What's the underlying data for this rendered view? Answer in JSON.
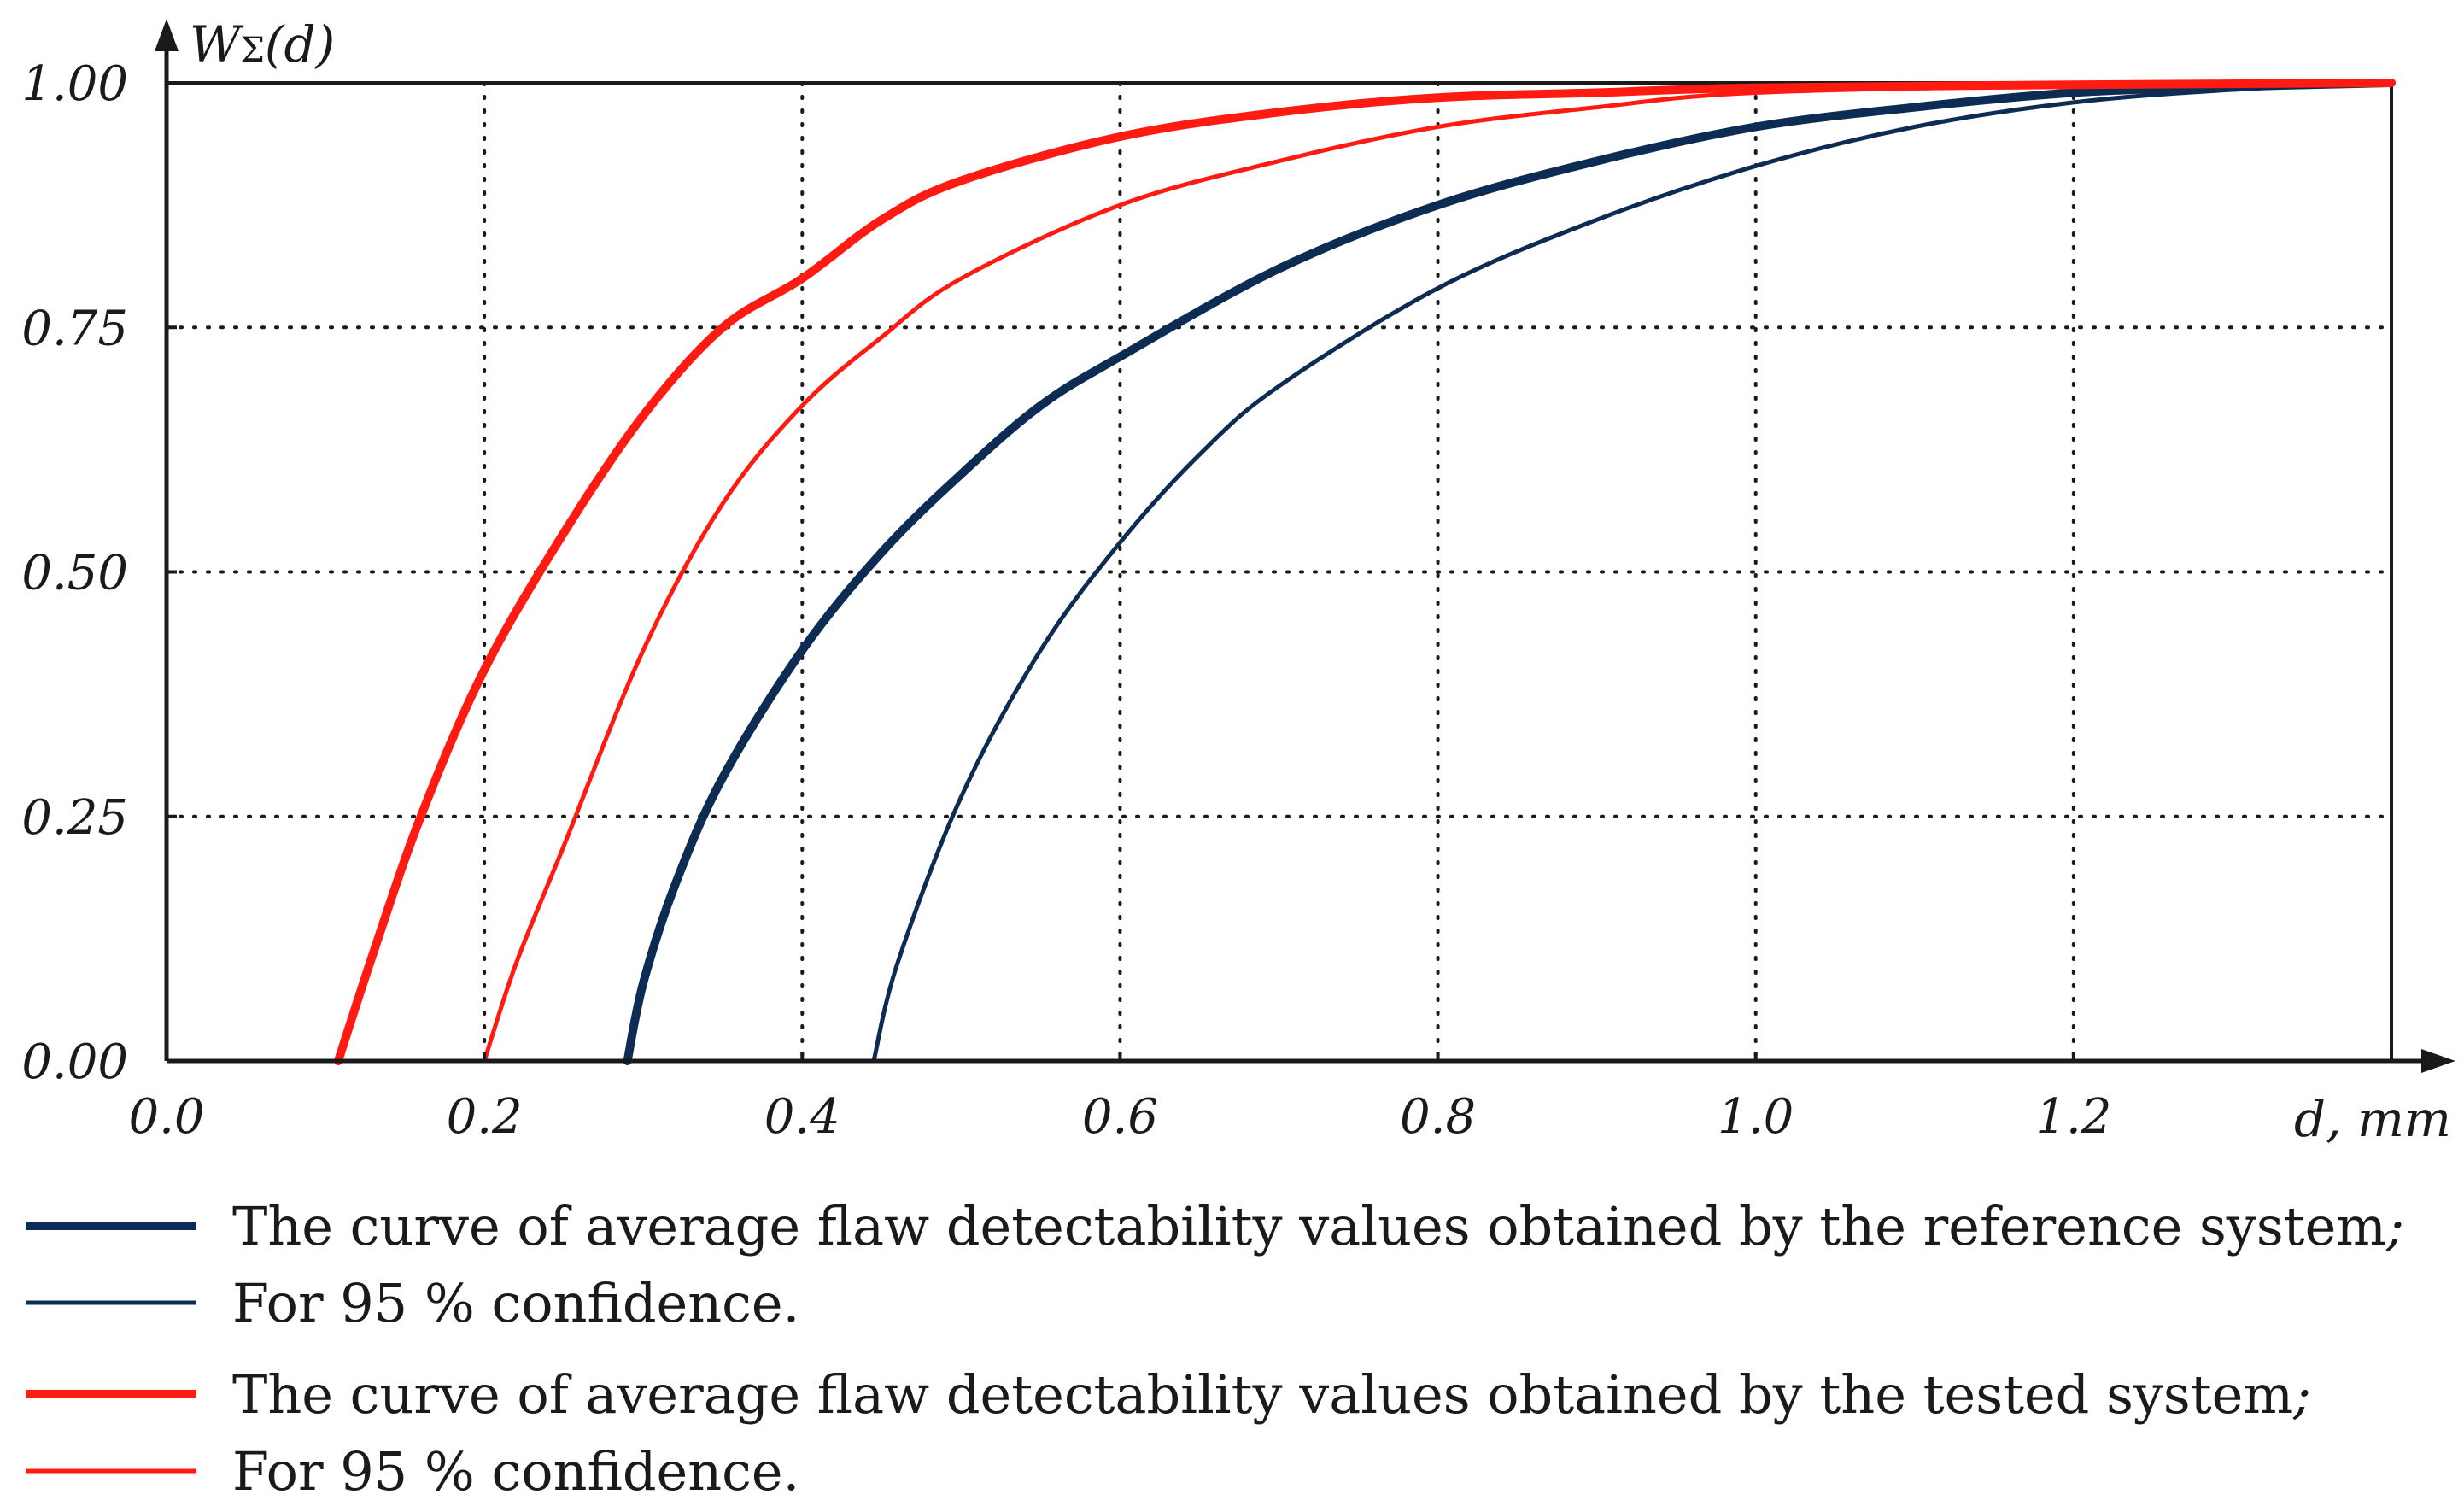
{
  "chart_data": {
    "type": "line",
    "title": "",
    "ylabel": "W",
    "ylabel_sub": "Σ",
    "ylabel_suffix": "(d)",
    "xlabel": "d, mm",
    "xlim": [
      0,
      1.4
    ],
    "ylim": [
      0,
      1
    ],
    "grid": true,
    "xticks": [
      0,
      0.2,
      0.4,
      0.6,
      0.8,
      1.0,
      1.2
    ],
    "xtick_labels": [
      "0.0",
      "0.2",
      "0.4",
      "0.6",
      "0.8",
      "1.0",
      "1.2"
    ],
    "yticks": [
      0,
      0.25,
      0.5,
      0.75,
      1.0
    ],
    "ytick_labels": [
      "0.00",
      "0.25",
      "0.50",
      "0.75",
      "1.00"
    ],
    "series": [
      {
        "name": "The curve of average flaw detectability values obtained by the reference system;",
        "color": "#0d2c54",
        "weight": "thick",
        "x": [
          0.29,
          0.3,
          0.32,
          0.35,
          0.4,
          0.45,
          0.5,
          0.55,
          0.6,
          0.7,
          0.8,
          0.9,
          1.0,
          1.1,
          1.2,
          1.3,
          1.4
        ],
        "y": [
          0.0,
          0.08,
          0.18,
          0.29,
          0.42,
          0.52,
          0.6,
          0.67,
          0.72,
          0.81,
          0.875,
          0.92,
          0.955,
          0.975,
          0.99,
          0.996,
          1.0
        ]
      },
      {
        "name": "For 95 % confidence.",
        "color": "#0d2c54",
        "weight": "thin",
        "x": [
          0.445,
          0.46,
          0.5,
          0.55,
          0.6,
          0.65,
          0.7,
          0.8,
          0.9,
          1.0,
          1.1,
          1.2,
          1.3,
          1.4
        ],
        "y": [
          0.0,
          0.1,
          0.27,
          0.42,
          0.53,
          0.62,
          0.69,
          0.79,
          0.86,
          0.915,
          0.955,
          0.98,
          0.993,
          1.0
        ]
      },
      {
        "name": "The curve of average flaw detectability values obtained by the tested system;",
        "color": "#ff1a12",
        "weight": "thick",
        "x": [
          0.108,
          0.13,
          0.16,
          0.2,
          0.25,
          0.3,
          0.35,
          0.4,
          0.45,
          0.5,
          0.6,
          0.7,
          0.8,
          0.9,
          1.0,
          1.2,
          1.4
        ],
        "y": [
          0.0,
          0.11,
          0.25,
          0.4,
          0.54,
          0.66,
          0.75,
          0.8,
          0.86,
          0.9,
          0.945,
          0.97,
          0.985,
          0.99,
          0.995,
          0.998,
          1.0
        ]
      },
      {
        "name": "For 95 % confidence.",
        "color": "#ff1a12",
        "weight": "thin",
        "x": [
          0.2,
          0.22,
          0.25,
          0.3,
          0.35,
          0.4,
          0.45,
          0.5,
          0.6,
          0.7,
          0.8,
          0.9,
          1.0,
          1.2,
          1.4
        ],
        "y": [
          0.0,
          0.1,
          0.22,
          0.42,
          0.57,
          0.67,
          0.74,
          0.8,
          0.875,
          0.92,
          0.955,
          0.975,
          0.99,
          0.997,
          1.0
        ]
      }
    ]
  },
  "legend": [
    {
      "label": "The curve of average flaw detectability values obtained by the reference system",
      "suffix": ";",
      "color": "#0d2c54",
      "weight": "thick"
    },
    {
      "label": "For 95 % confidence.",
      "suffix": "",
      "color": "#0d2c54",
      "weight": "thin"
    },
    {
      "label": "The curve of average flaw detectability values obtained by the tested system",
      "suffix": ";",
      "color": "#ff1a12",
      "weight": "thick"
    },
    {
      "label": "For 95 % confidence.",
      "suffix": "",
      "color": "#ff1a12",
      "weight": "thin"
    }
  ]
}
